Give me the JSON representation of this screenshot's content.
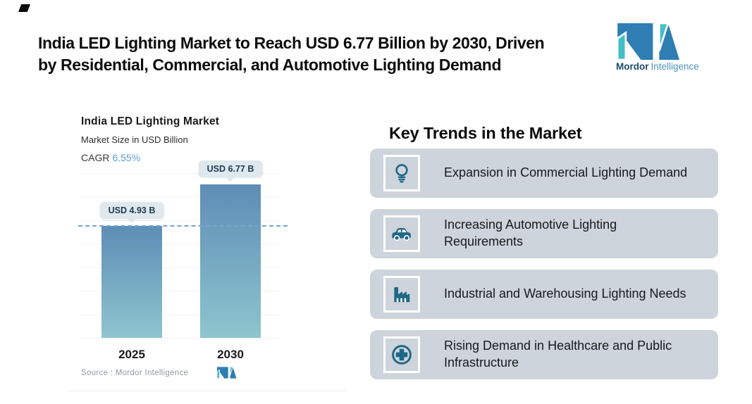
{
  "header": {
    "title_line1": "India LED Lighting Market to Reach USD 6.77 Billion by 2030, Driven",
    "title_line2": "by Residential, Commercial, and Automotive Lighting Demand"
  },
  "brand": {
    "name_primary": "Mordor",
    "name_secondary": "Intelligence"
  },
  "chart": {
    "title": "India LED Lighting Market",
    "subtitle": "Market Size in USD Billion",
    "cagr_label": "CAGR",
    "cagr_value": "6.55%",
    "source": "Source : Mordor Intelligence",
    "bars": [
      {
        "year": "2025",
        "label": "USD 4.93 B",
        "value": 4.93
      },
      {
        "year": "2030",
        "label": "USD 6.77 B",
        "value": 6.77
      }
    ]
  },
  "chart_data": {
    "type": "bar",
    "categories": [
      "2025",
      "2030"
    ],
    "values": [
      4.93,
      6.77
    ],
    "title": "India LED Lighting Market",
    "subtitle": "Market Size in USD Billion",
    "unit": "USD Billion",
    "cagr_pct": 6.55,
    "data_labels": [
      "USD 4.93 B",
      "USD 6.77 B"
    ],
    "reference_line_y": 4.93,
    "grid": true,
    "legend": false,
    "ylim": [
      0,
      7.3
    ]
  },
  "trends": {
    "heading": "Key Trends in the Market",
    "items": [
      {
        "icon": "lightbulb-icon",
        "text": "Expansion in Commercial Lighting Demand"
      },
      {
        "icon": "car-icon",
        "text": "Increasing Automotive Lighting Requirements"
      },
      {
        "icon": "factory-icon",
        "text": "Industrial and Warehousing Lighting Needs"
      },
      {
        "icon": "medical-cross-icon",
        "text": "Rising Demand in Healthcare and Public Infrastructure"
      }
    ]
  },
  "colors": {
    "brand_blue": "#2e7eb4",
    "brand_teal": "#43c0c5",
    "bar_top": "#5e8db6",
    "bar_bottom": "#8ec5ce",
    "dashed_line": "#76a3cf",
    "tooltip_bg": "#dfe9ed",
    "tooltip_text": "#1d3a52",
    "card_bg": "#ced4db",
    "icon_color": "#1e6787",
    "cagr_value_color": "#5b9bd5"
  }
}
